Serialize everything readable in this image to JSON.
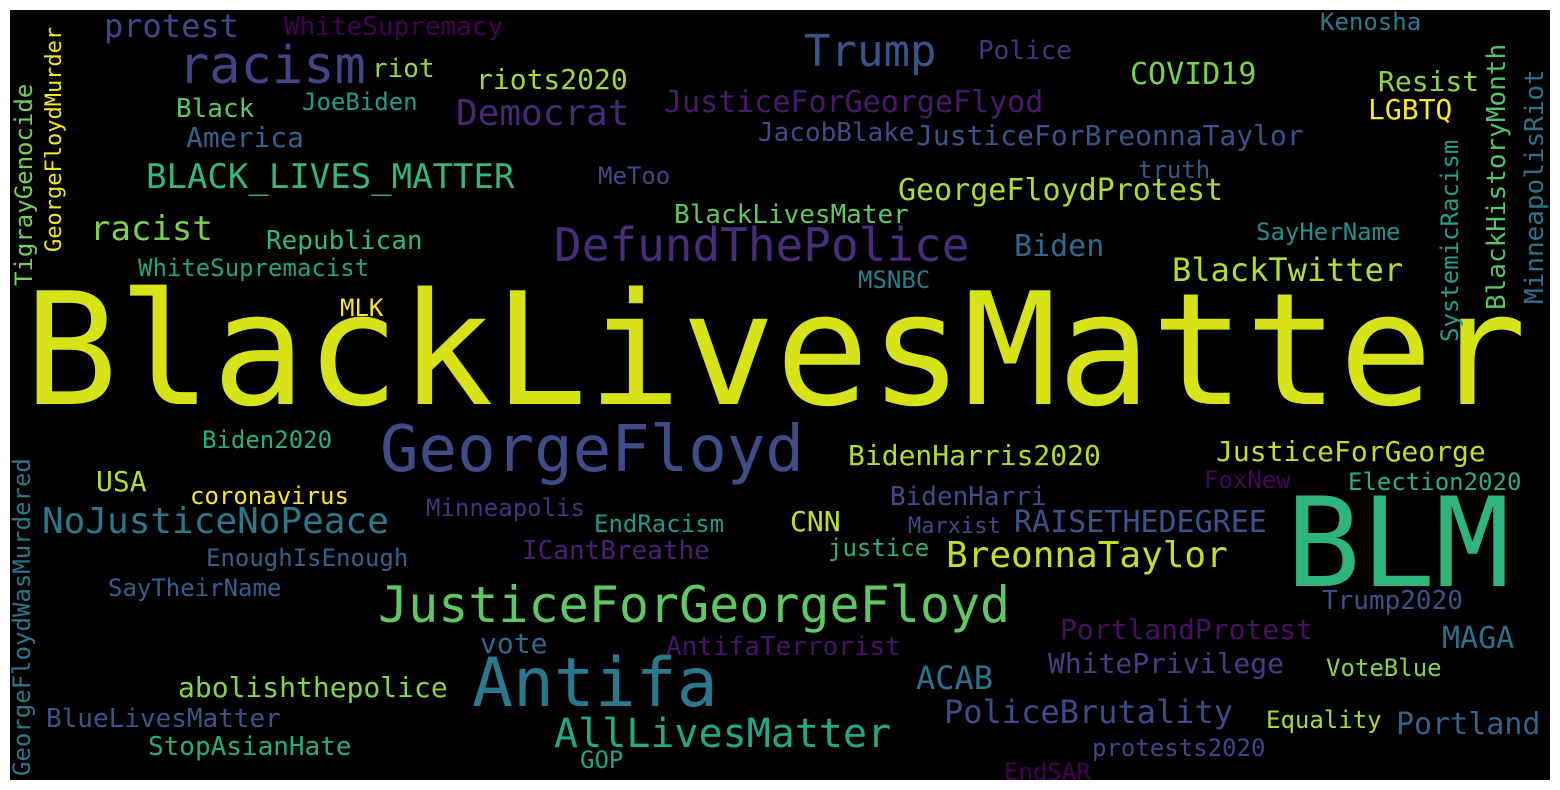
{
  "words": [
    {
      "text": "BlackLivesMatter",
      "color": "#d7e219"
    },
    {
      "text": "BLM",
      "color": "#2fb47c"
    },
    {
      "text": "GeorgeFloyd",
      "color": "#3e4c8a"
    },
    {
      "text": "Antifa",
      "color": "#2a788e"
    },
    {
      "text": "JusticeForGeorgeFloyd",
      "color": "#5ec962"
    },
    {
      "text": "DefundThePolice",
      "color": "#472d7b"
    },
    {
      "text": "racism",
      "color": "#414487"
    },
    {
      "text": "Trump",
      "color": "#3b528b"
    },
    {
      "text": "AllLivesMatter",
      "color": "#22a884"
    },
    {
      "text": "NoJusticeNoPeace",
      "color": "#2a788e"
    },
    {
      "text": "BreonnaTaylor",
      "color": "#c2df23"
    },
    {
      "text": "BLACK_LIVES_MATTER",
      "color": "#35b779"
    },
    {
      "text": "Democrat",
      "color": "#482878"
    },
    {
      "text": "JusticeForGeorgeFlyod",
      "color": "#481a6c"
    },
    {
      "text": "GeorgeFloydProtest",
      "color": "#addc30"
    },
    {
      "text": "JusticeForBreonnaTaylor",
      "color": "#3b528b"
    },
    {
      "text": "BlackTwitter",
      "color": "#b5de2b"
    },
    {
      "text": "PoliceBrutality",
      "color": "#3e4a89"
    },
    {
      "text": "JusticeForGeorge",
      "color": "#bddf26"
    },
    {
      "text": "BidenHarris2020",
      "color": "#b2dd2d"
    },
    {
      "text": "RAISETHEDEGREE",
      "color": "#3b528b"
    },
    {
      "text": "abolishthepolice",
      "color": "#86d549"
    },
    {
      "text": "racist",
      "color": "#7ad151"
    },
    {
      "text": "riots2020",
      "color": "#a0da39"
    },
    {
      "text": "COVID19",
      "color": "#7ad151"
    },
    {
      "text": "ACAB",
      "color": "#2c728e"
    },
    {
      "text": "MAGA",
      "color": "#2d708e"
    },
    {
      "text": "Portland",
      "color": "#33638d"
    },
    {
      "text": "WhitePrivilege",
      "color": "#433e85"
    },
    {
      "text": "PortlandProtest",
      "color": "#471063"
    },
    {
      "text": "Biden",
      "color": "#31688e"
    },
    {
      "text": "protest",
      "color": "#3e4989"
    },
    {
      "text": "vote",
      "color": "#31688e"
    },
    {
      "text": "Resist",
      "color": "#8ed645"
    },
    {
      "text": "LGBTQ",
      "color": "#fde725"
    },
    {
      "text": "America",
      "color": "#34618d"
    },
    {
      "text": "Black",
      "color": "#5ec962"
    },
    {
      "text": "JoeBiden",
      "color": "#1f9e89"
    },
    {
      "text": "riot",
      "color": "#95d840"
    },
    {
      "text": "Police",
      "color": "#46337e"
    },
    {
      "text": "WhiteSupremacy",
      "color": "#440154"
    },
    {
      "text": "Kenosha",
      "color": "#287c8e"
    },
    {
      "text": "JacobBlake",
      "color": "#3e4c8a"
    },
    {
      "text": "truth",
      "color": "#39568c"
    },
    {
      "text": "MeToo",
      "color": "#3e4989"
    },
    {
      "text": "BlackLivesMater",
      "color": "#5ec962"
    },
    {
      "text": "Republican",
      "color": "#35b779"
    },
    {
      "text": "WhiteSupremacist",
      "color": "#20a486"
    },
    {
      "text": "SayHerName",
      "color": "#21918c"
    },
    {
      "text": "MSNBC",
      "color": "#277f8e"
    },
    {
      "text": "MLK",
      "color": "#fde725"
    },
    {
      "text": "Biden2020",
      "color": "#29af7f"
    },
    {
      "text": "USA",
      "color": "#b5de2b"
    },
    {
      "text": "coronavirus",
      "color": "#fde725"
    },
    {
      "text": "Minneapolis",
      "color": "#46327e"
    },
    {
      "text": "EndRacism",
      "color": "#1f9a8a"
    },
    {
      "text": "CNN",
      "color": "#c2df23"
    },
    {
      "text": "justice",
      "color": "#2db27d"
    },
    {
      "text": "Marxist",
      "color": "#3e4a89"
    },
    {
      "text": "BidenHarri",
      "color": "#3e4c8a"
    },
    {
      "text": "FoxNew",
      "color": "#46075a"
    },
    {
      "text": "Election2020",
      "color": "#29af7f"
    },
    {
      "text": "EnoughIsEnough",
      "color": "#33638d"
    },
    {
      "text": "ICantBreathe",
      "color": "#482173"
    },
    {
      "text": "SayTheirName",
      "color": "#355f8d"
    },
    {
      "text": "Trump2020",
      "color": "#3b528b"
    },
    {
      "text": "AntifaTerrorist",
      "color": "#481467"
    },
    {
      "text": "VoteBlue",
      "color": "#86d549"
    },
    {
      "text": "BlueLivesMatter",
      "color": "#3a548c"
    },
    {
      "text": "StopAsianHate",
      "color": "#27ad81"
    },
    {
      "text": "GOP",
      "color": "#20a386"
    },
    {
      "text": "protests2020",
      "color": "#404688"
    },
    {
      "text": "Equality",
      "color": "#a8db34"
    },
    {
      "text": "EndSAR",
      "color": "#440154"
    },
    {
      "text": "TigrayGenocide",
      "color": "#75d054"
    },
    {
      "text": "GeorgeFloydMurder",
      "color": "#f4e61e"
    },
    {
      "text": "GeorgeFloydWasMurdered",
      "color": "#2a788e"
    },
    {
      "text": "SystemicRacism",
      "color": "#1fa188"
    },
    {
      "text": "BlackHistoryMonth",
      "color": "#54c568"
    },
    {
      "text": "MinneapolisRiot",
      "color": "#2c728e"
    }
  ]
}
